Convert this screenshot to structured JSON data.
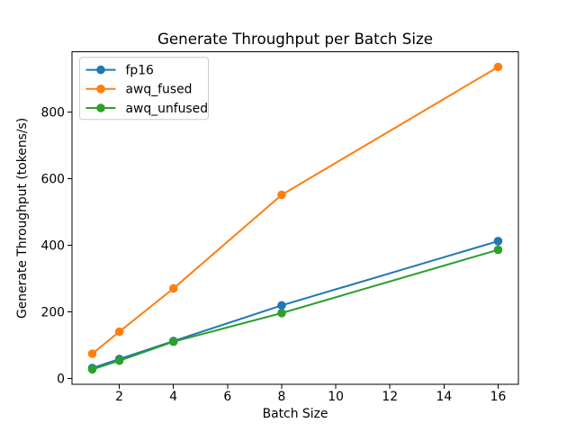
{
  "figure": {
    "background": "#ffffff"
  },
  "chart_data": {
    "type": "line",
    "title": "Generate Throughput per Batch Size",
    "xlabel": "Batch Size",
    "ylabel": "Generate Throughput (tokens/s)",
    "x": [
      1,
      2,
      4,
      8,
      16
    ],
    "series": [
      {
        "name": "fp16",
        "color": "#1f77b4",
        "values": [
          31,
          58,
          112,
          219,
          412
        ]
      },
      {
        "name": "awq_fused",
        "color": "#ff7f0e",
        "values": [
          74,
          140,
          270,
          551,
          935
        ]
      },
      {
        "name": "awq_unfused",
        "color": "#2ca02c",
        "values": [
          27,
          53,
          110,
          196,
          386
        ]
      }
    ],
    "xticks": [
      2,
      4,
      6,
      8,
      10,
      12,
      14,
      16
    ],
    "yticks": [
      0,
      200,
      400,
      600,
      800
    ],
    "xlim": [
      0.25,
      16.75
    ],
    "ylim": [
      -18.4,
      980.4
    ],
    "grid": false,
    "legend_position": "upper left",
    "marker": "circle",
    "axis_color": "#000000",
    "text_color": "#000000",
    "legend_border_color": "#cccccc",
    "legend_background": "#ffffff"
  }
}
